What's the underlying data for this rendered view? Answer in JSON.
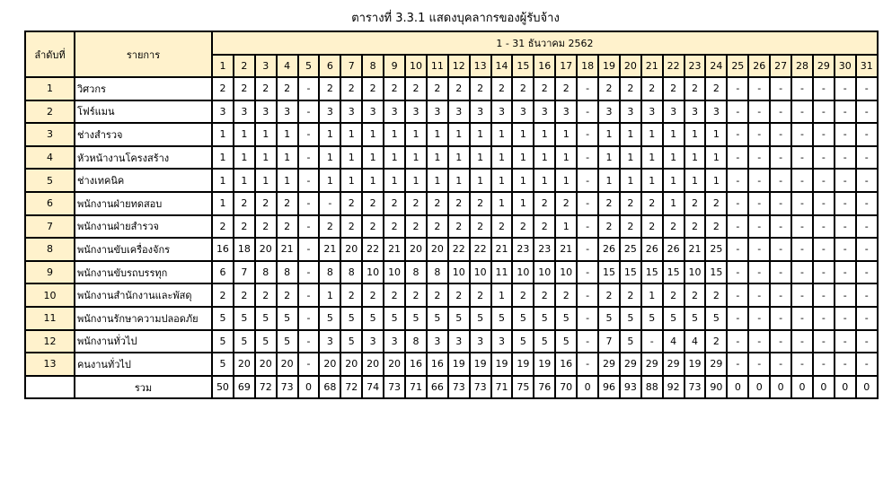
{
  "title": "ตารางที่ 3.3.1 แสดงบุคลากรของผู้รับจ้าง",
  "header": {
    "col_no": "ลำดับที่",
    "col_item": "รายการ",
    "period": "1 - 31 ธันวาคม 2562"
  },
  "days": [
    "1",
    "2",
    "3",
    "4",
    "5",
    "6",
    "7",
    "8",
    "9",
    "10",
    "11",
    "12",
    "13",
    "14",
    "15",
    "16",
    "17",
    "18",
    "19",
    "20",
    "21",
    "22",
    "23",
    "24",
    "25",
    "26",
    "27",
    "28",
    "29",
    "30",
    "31"
  ],
  "rows": [
    {
      "no": "1",
      "name": "วิศวกร",
      "values": [
        "2",
        "2",
        "2",
        "2",
        "-",
        "2",
        "2",
        "2",
        "2",
        "2",
        "2",
        "2",
        "2",
        "2",
        "2",
        "2",
        "2",
        "-",
        "2",
        "2",
        "2",
        "2",
        "2",
        "2",
        "-",
        "-",
        "-",
        "-",
        "-",
        "-",
        "-"
      ]
    },
    {
      "no": "2",
      "name": "โฟร์แมน",
      "values": [
        "3",
        "3",
        "3",
        "3",
        "-",
        "3",
        "3",
        "3",
        "3",
        "3",
        "3",
        "3",
        "3",
        "3",
        "3",
        "3",
        "3",
        "-",
        "3",
        "3",
        "3",
        "3",
        "3",
        "3",
        "-",
        "-",
        "-",
        "-",
        "-",
        "-",
        "-"
      ]
    },
    {
      "no": "3",
      "name": "ช่างสำรวจ",
      "values": [
        "1",
        "1",
        "1",
        "1",
        "-",
        "1",
        "1",
        "1",
        "1",
        "1",
        "1",
        "1",
        "1",
        "1",
        "1",
        "1",
        "1",
        "-",
        "1",
        "1",
        "1",
        "1",
        "1",
        "1",
        "-",
        "-",
        "-",
        "-",
        "-",
        "-",
        "-"
      ]
    },
    {
      "no": "4",
      "name": "หัวหน้างานโครงสร้าง",
      "values": [
        "1",
        "1",
        "1",
        "1",
        "-",
        "1",
        "1",
        "1",
        "1",
        "1",
        "1",
        "1",
        "1",
        "1",
        "1",
        "1",
        "1",
        "-",
        "1",
        "1",
        "1",
        "1",
        "1",
        "1",
        "-",
        "-",
        "-",
        "-",
        "-",
        "-",
        "-"
      ]
    },
    {
      "no": "5",
      "name": "ช่างเทคนิค",
      "values": [
        "1",
        "1",
        "1",
        "1",
        "-",
        "1",
        "1",
        "1",
        "1",
        "1",
        "1",
        "1",
        "1",
        "1",
        "1",
        "1",
        "1",
        "-",
        "1",
        "1",
        "1",
        "1",
        "1",
        "1",
        "-",
        "-",
        "-",
        "-",
        "-",
        "-",
        "-"
      ]
    },
    {
      "no": "6",
      "name": "พนักงานฝ่ายทดสอบ",
      "values": [
        "1",
        "2",
        "2",
        "2",
        "-",
        "-",
        "2",
        "2",
        "2",
        "2",
        "2",
        "2",
        "2",
        "1",
        "1",
        "2",
        "2",
        "-",
        "2",
        "2",
        "2",
        "1",
        "2",
        "2",
        "-",
        "-",
        "-",
        "-",
        "-",
        "-",
        "-"
      ]
    },
    {
      "no": "7",
      "name": "พนักงานฝ่ายสำรวจ",
      "values": [
        "2",
        "2",
        "2",
        "2",
        "-",
        "2",
        "2",
        "2",
        "2",
        "2",
        "2",
        "2",
        "2",
        "2",
        "2",
        "2",
        "1",
        "-",
        "2",
        "2",
        "2",
        "2",
        "2",
        "2",
        "-",
        "-",
        "-",
        "-",
        "-",
        "-",
        "-"
      ]
    },
    {
      "no": "8",
      "name": "พนักงานขับเครื่องจักร",
      "values": [
        "16",
        "18",
        "20",
        "21",
        "-",
        "21",
        "20",
        "22",
        "21",
        "20",
        "20",
        "22",
        "22",
        "21",
        "23",
        "23",
        "21",
        "-",
        "26",
        "25",
        "26",
        "26",
        "21",
        "25",
        "-",
        "-",
        "-",
        "-",
        "-",
        "-",
        "-"
      ]
    },
    {
      "no": "9",
      "name": "พนักงานขับรถบรรทุก",
      "values": [
        "6",
        "7",
        "8",
        "8",
        "-",
        "8",
        "8",
        "10",
        "10",
        "8",
        "8",
        "10",
        "10",
        "11",
        "10",
        "10",
        "10",
        "-",
        "15",
        "15",
        "15",
        "15",
        "10",
        "15",
        "-",
        "-",
        "-",
        "-",
        "-",
        "-",
        "-"
      ]
    },
    {
      "no": "10",
      "name": "พนักงานสำนักงานและพัสดุ",
      "values": [
        "2",
        "2",
        "2",
        "2",
        "-",
        "1",
        "2",
        "2",
        "2",
        "2",
        "2",
        "2",
        "2",
        "1",
        "2",
        "2",
        "2",
        "-",
        "2",
        "2",
        "1",
        "2",
        "2",
        "2",
        "-",
        "-",
        "-",
        "-",
        "-",
        "-",
        "-"
      ]
    },
    {
      "no": "11",
      "name": "พนักงานรักษาความปลอดภัย",
      "values": [
        "5",
        "5",
        "5",
        "5",
        "-",
        "5",
        "5",
        "5",
        "5",
        "5",
        "5",
        "5",
        "5",
        "5",
        "5",
        "5",
        "5",
        "-",
        "5",
        "5",
        "5",
        "5",
        "5",
        "5",
        "-",
        "-",
        "-",
        "-",
        "-",
        "-",
        "-"
      ]
    },
    {
      "no": "12",
      "name": "พนักงานทั่วไป",
      "values": [
        "5",
        "5",
        "5",
        "5",
        "-",
        "3",
        "5",
        "3",
        "3",
        "8",
        "3",
        "3",
        "3",
        "3",
        "5",
        "5",
        "5",
        "-",
        "7",
        "5",
        "-",
        "4",
        "4",
        "2",
        "-",
        "-",
        "-",
        "-",
        "-",
        "-",
        "-"
      ]
    },
    {
      "no": "13",
      "name": "คนงานทั่วไป",
      "values": [
        "5",
        "20",
        "20",
        "20",
        "-",
        "20",
        "20",
        "20",
        "20",
        "16",
        "16",
        "19",
        "19",
        "19",
        "19",
        "19",
        "16",
        "-",
        "29",
        "29",
        "29",
        "29",
        "19",
        "29",
        "-",
        "-",
        "-",
        "-",
        "-",
        "-",
        "-"
      ]
    }
  ],
  "total": {
    "label": "รวม",
    "values": [
      "50",
      "69",
      "72",
      "73",
      "0",
      "68",
      "72",
      "74",
      "73",
      "71",
      "66",
      "73",
      "73",
      "71",
      "75",
      "76",
      "70",
      "0",
      "96",
      "93",
      "88",
      "92",
      "73",
      "90",
      "0",
      "0",
      "0",
      "0",
      "0",
      "0",
      "0"
    ]
  },
  "colors": {
    "header_bg": "#fff2cc",
    "border": "#000000"
  }
}
